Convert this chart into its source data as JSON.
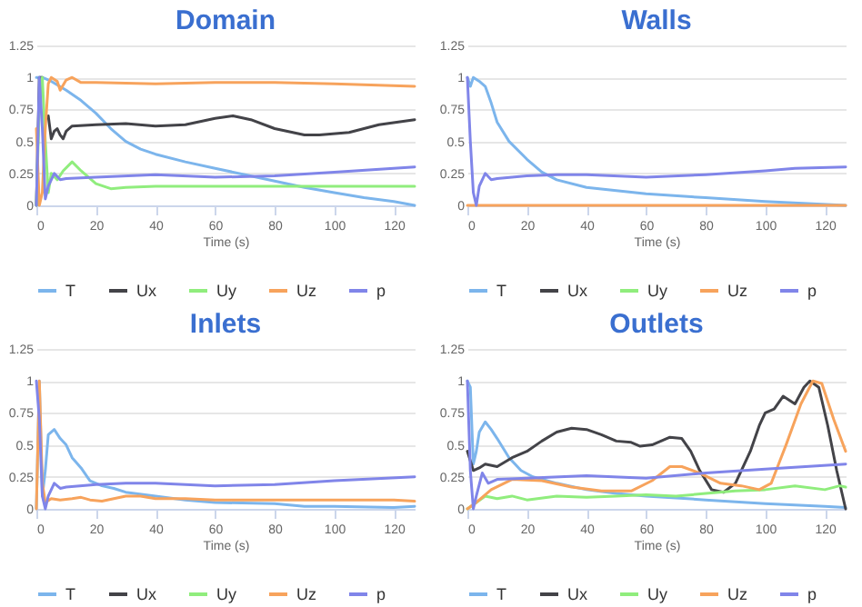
{
  "chart_data": [
    {
      "type": "line",
      "title": "Domain",
      "xlabel": "Time (s)",
      "xlim": [
        0,
        127
      ],
      "xticks": [
        0,
        20,
        40,
        60,
        80,
        100,
        120
      ],
      "ylim": [
        0,
        1.25
      ],
      "yticks": [
        0,
        0.25,
        0.5,
        0.75,
        1,
        1.25
      ],
      "grid": "y",
      "legend": "bottom",
      "marker": "none",
      "line_style": "solid",
      "series": [
        {
          "name": "T",
          "color": "#7cb5ec",
          "x": [
            0,
            2,
            5,
            10,
            15,
            20,
            25,
            30,
            35,
            40,
            50,
            60,
            70,
            80,
            90,
            100,
            110,
            120,
            127
          ],
          "values": [
            1,
            1,
            0.97,
            0.9,
            0.82,
            0.72,
            0.6,
            0.5,
            0.44,
            0.4,
            0.34,
            0.29,
            0.24,
            0.19,
            0.14,
            0.1,
            0.06,
            0.03,
            0
          ]
        },
        {
          "name": "Ux",
          "color": "#434348",
          "x": [
            0,
            1,
            2,
            3,
            4,
            5,
            6,
            7,
            8,
            9,
            10,
            12,
            20,
            30,
            40,
            50,
            60,
            66,
            72,
            80,
            90,
            95,
            105,
            115,
            127
          ],
          "values": [
            0,
            1,
            1,
            null,
            0.7,
            0.52,
            0.58,
            0.6,
            0.55,
            0.52,
            0.58,
            0.62,
            0.63,
            0.64,
            0.62,
            0.63,
            0.68,
            0.7,
            0.67,
            0.6,
            0.55,
            0.55,
            0.57,
            0.63,
            0.67
          ]
        },
        {
          "name": "Uy",
          "color": "#90ed7d",
          "x": [
            0,
            1,
            2,
            3,
            4,
            5,
            7,
            9,
            12,
            15,
            20,
            25,
            30,
            40,
            60,
            80,
            100,
            127
          ],
          "values": [
            0,
            0.8,
            1,
            0.5,
            0.1,
            0.25,
            0.2,
            0.27,
            0.34,
            0.27,
            0.17,
            0.13,
            0.14,
            0.15,
            0.15,
            0.15,
            0.15,
            0.15
          ]
        },
        {
          "name": "Uz",
          "color": "#f7a35c",
          "x": [
            0,
            1,
            2,
            3,
            4,
            5,
            7,
            8,
            10,
            12,
            15,
            20,
            40,
            60,
            80,
            100,
            127
          ],
          "values": [
            0.6,
            0,
            0.1,
            0.6,
            0.95,
            1,
            0.97,
            0.9,
            0.98,
            1,
            0.96,
            0.96,
            0.95,
            0.96,
            0.96,
            0.95,
            0.93
          ]
        },
        {
          "name": "p",
          "color": "#8085e9",
          "x": [
            0,
            1,
            2,
            3,
            4,
            6,
            8,
            10,
            20,
            40,
            60,
            80,
            100,
            127
          ],
          "values": [
            0,
            1,
            0.6,
            0.05,
            0.15,
            0.25,
            0.2,
            0.21,
            0.22,
            0.24,
            0.22,
            0.23,
            0.26,
            0.3
          ]
        }
      ]
    },
    {
      "type": "line",
      "title": "Walls",
      "xlabel": "Time (s)",
      "xlim": [
        0,
        127
      ],
      "xticks": [
        0,
        20,
        40,
        60,
        80,
        100,
        120
      ],
      "ylim": [
        0,
        1.25
      ],
      "yticks": [
        0,
        0.25,
        0.5,
        0.75,
        1,
        1.25
      ],
      "grid": "y",
      "legend": "bottom",
      "marker": "none",
      "line_style": "solid",
      "series": [
        {
          "name": "T",
          "color": "#7cb5ec",
          "x": [
            0,
            1,
            2,
            4,
            6,
            8,
            10,
            14,
            20,
            25,
            30,
            40,
            60,
            80,
            100,
            127
          ],
          "values": [
            1,
            0.93,
            1,
            0.97,
            0.93,
            0.8,
            0.65,
            0.5,
            0.36,
            0.26,
            0.2,
            0.14,
            0.09,
            0.06,
            0.03,
            0
          ]
        },
        {
          "name": "Ux",
          "color": "#434348"
        },
        {
          "name": "Uy",
          "color": "#90ed7d"
        },
        {
          "name": "Uz",
          "color": "#f7a35c",
          "x": [
            0,
            127
          ],
          "values": [
            0,
            0
          ]
        },
        {
          "name": "p",
          "color": "#8085e9",
          "x": [
            0,
            1,
            2,
            3,
            4,
            6,
            8,
            10,
            20,
            30,
            40,
            60,
            80,
            100,
            110,
            127
          ],
          "values": [
            1,
            0.5,
            0.1,
            0,
            0.15,
            0.25,
            0.2,
            0.21,
            0.23,
            0.24,
            0.24,
            0.22,
            0.24,
            0.27,
            0.29,
            0.3
          ]
        }
      ]
    },
    {
      "type": "line",
      "title": "Inlets",
      "xlabel": "Time (s)",
      "xlim": [
        0,
        127
      ],
      "xticks": [
        0,
        20,
        40,
        60,
        80,
        100,
        120
      ],
      "ylim": [
        0,
        1.25
      ],
      "yticks": [
        0,
        0.25,
        0.5,
        0.75,
        1,
        1.25
      ],
      "grid": "y",
      "legend": "bottom",
      "marker": "none",
      "line_style": "solid",
      "series": [
        {
          "name": "T",
          "color": "#7cb5ec",
          "x": [
            0,
            1,
            2,
            3,
            4,
            6,
            8,
            10,
            12,
            15,
            18,
            22,
            26,
            30,
            40,
            50,
            60,
            80,
            90,
            100,
            120,
            127
          ],
          "values": [
            0,
            1,
            0.1,
            0.3,
            0.58,
            0.62,
            0.55,
            0.5,
            0.4,
            0.32,
            0.22,
            0.18,
            0.16,
            0.13,
            0.1,
            0.07,
            0.05,
            0.04,
            0.02,
            0.02,
            0.01,
            0.02
          ]
        },
        {
          "name": "Ux",
          "color": "#434348"
        },
        {
          "name": "Uy",
          "color": "#90ed7d"
        },
        {
          "name": "Uz",
          "color": "#f7a35c",
          "x": [
            0,
            1,
            2,
            3,
            5,
            8,
            12,
            15,
            18,
            22,
            26,
            30,
            35,
            40,
            50,
            60,
            80,
            100,
            120,
            127
          ],
          "values": [
            0,
            1,
            0.2,
            0.05,
            0.08,
            0.07,
            0.08,
            0.09,
            0.07,
            0.06,
            0.08,
            0.1,
            0.1,
            0.08,
            0.08,
            0.07,
            0.07,
            0.07,
            0.07,
            0.06
          ]
        },
        {
          "name": "p",
          "color": "#8085e9",
          "x": [
            0,
            1,
            2,
            3,
            4,
            6,
            8,
            10,
            20,
            30,
            40,
            60,
            80,
            100,
            127
          ],
          "values": [
            1,
            0.7,
            0.1,
            0,
            0.1,
            0.2,
            0.16,
            0.17,
            0.19,
            0.2,
            0.2,
            0.18,
            0.19,
            0.22,
            0.25
          ]
        }
      ]
    },
    {
      "type": "line",
      "title": "Outlets",
      "xlabel": "Time (s)",
      "xlim": [
        0,
        127
      ],
      "xticks": [
        0,
        20,
        40,
        60,
        80,
        100,
        120
      ],
      "ylim": [
        0,
        1.25
      ],
      "yticks": [
        0,
        0.25,
        0.5,
        0.75,
        1,
        1.25
      ],
      "grid": "y",
      "legend": "bottom",
      "marker": "none",
      "line_style": "solid",
      "series": [
        {
          "name": "T",
          "color": "#7cb5ec",
          "x": [
            0,
            1,
            2,
            3,
            4,
            6,
            8,
            10,
            14,
            18,
            22,
            30,
            40,
            50,
            60,
            80,
            100,
            120,
            127
          ],
          "values": [
            1,
            0.95,
            0.35,
            0.45,
            0.6,
            0.68,
            0.62,
            0.55,
            0.4,
            0.3,
            0.25,
            0.2,
            0.15,
            0.12,
            0.1,
            0.07,
            0.04,
            0.02,
            0.01
          ]
        },
        {
          "name": "Ux",
          "color": "#434348",
          "x": [
            0,
            2,
            4,
            6,
            10,
            15,
            20,
            25,
            30,
            35,
            40,
            45,
            50,
            55,
            58,
            62,
            65,
            68,
            72,
            75,
            78,
            82,
            86,
            90,
            95,
            98,
            100,
            103,
            106,
            110,
            113,
            115,
            118,
            121,
            124,
            127
          ],
          "values": [
            0.45,
            0.3,
            0.32,
            0.35,
            0.33,
            0.4,
            0.45,
            0.53,
            0.6,
            0.63,
            0.62,
            0.58,
            0.53,
            0.52,
            0.49,
            0.5,
            0.53,
            0.56,
            0.55,
            0.45,
            0.3,
            0.15,
            0.13,
            0.2,
            0.45,
            0.65,
            0.75,
            0.78,
            0.88,
            0.82,
            0.95,
            1,
            0.95,
            0.65,
            0.3,
            0
          ]
        },
        {
          "name": "Uy",
          "color": "#90ed7d",
          "x": [
            0,
            3,
            6,
            10,
            15,
            20,
            30,
            40,
            50,
            60,
            70,
            80,
            90,
            100,
            110,
            120,
            125,
            127
          ],
          "values": [
            0,
            0.05,
            0.1,
            0.08,
            0.1,
            0.07,
            0.1,
            0.09,
            0.1,
            0.11,
            0.1,
            0.12,
            0.14,
            0.15,
            0.18,
            0.15,
            0.18,
            0.17
          ]
        },
        {
          "name": "Uz",
          "color": "#f7a35c",
          "x": [
            0,
            3,
            8,
            15,
            25,
            35,
            45,
            55,
            62,
            68,
            72,
            78,
            85,
            92,
            98,
            102,
            107,
            112,
            116,
            119,
            123,
            127
          ],
          "values": [
            0,
            0.05,
            0.15,
            0.23,
            0.22,
            0.17,
            0.14,
            0.14,
            0.22,
            0.33,
            0.33,
            0.28,
            0.2,
            0.18,
            0.15,
            0.2,
            0.5,
            0.82,
            1,
            0.98,
            0.7,
            0.45
          ]
        },
        {
          "name": "p",
          "color": "#8085e9",
          "x": [
            0,
            1,
            2,
            3,
            5,
            7,
            10,
            20,
            40,
            60,
            80,
            100,
            127
          ],
          "values": [
            1,
            0.3,
            0,
            0.1,
            0.28,
            0.2,
            0.23,
            0.24,
            0.26,
            0.24,
            0.28,
            0.31,
            0.35
          ]
        }
      ]
    }
  ]
}
